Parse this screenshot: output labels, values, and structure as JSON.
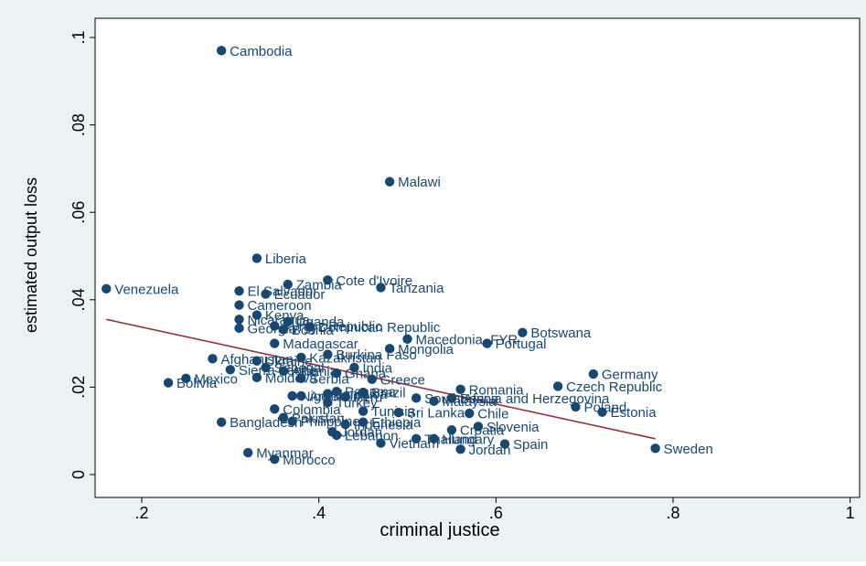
{
  "colors": {
    "outer_background": "#eaf2f3",
    "plot_background": "#ffffff",
    "marker": "#1a476f",
    "fit_line": "#90353b",
    "text": "#000000"
  },
  "chart_data": {
    "type": "scatter",
    "title": "",
    "xlabel": "criminal justice",
    "ylabel": "estimated output loss",
    "xlim": [
      0.15,
      1.02
    ],
    "ylim": [
      -0.002,
      0.102
    ],
    "x_ticks": [
      0.2,
      0.4,
      0.6,
      0.8,
      1
    ],
    "x_tick_labels": [
      ".2",
      ".4",
      ".6",
      ".8",
      "1"
    ],
    "y_ticks": [
      0,
      0.02,
      0.04,
      0.06,
      0.08,
      0.1
    ],
    "y_tick_labels": [
      "0",
      ".02",
      ".04",
      ".06",
      ".08",
      ".1"
    ],
    "grid": false,
    "legend": "none",
    "fit_line": {
      "x": [
        0.16,
        0.78
      ],
      "y": [
        0.0355,
        0.0082
      ]
    },
    "points": [
      {
        "label": "Cambodia",
        "x": 0.29,
        "y": 0.097
      },
      {
        "label": "Malawi",
        "x": 0.48,
        "y": 0.067
      },
      {
        "label": "Liberia",
        "x": 0.33,
        "y": 0.0495
      },
      {
        "label": "Cote d'Ivoire",
        "x": 0.41,
        "y": 0.0445
      },
      {
        "label": "Zambia",
        "x": 0.365,
        "y": 0.0435
      },
      {
        "label": "Tanzania",
        "x": 0.47,
        "y": 0.0428
      },
      {
        "label": "Venezuela",
        "x": 0.16,
        "y": 0.0425
      },
      {
        "label": "El Salvador",
        "x": 0.31,
        "y": 0.042
      },
      {
        "label": "Ecuador",
        "x": 0.34,
        "y": 0.0413
      },
      {
        "label": "Cameroon",
        "x": 0.31,
        "y": 0.0388
      },
      {
        "label": "Kenya",
        "x": 0.33,
        "y": 0.0365
      },
      {
        "label": "Nicaragua",
        "x": 0.31,
        "y": 0.0355
      },
      {
        "label": "Uganda",
        "x": 0.365,
        "y": 0.035
      },
      {
        "label": "Kyrgyz Republic",
        "x": 0.35,
        "y": 0.034
      },
      {
        "label": "Dominican Republic",
        "x": 0.39,
        "y": 0.0338
      },
      {
        "label": "Georgia",
        "x": 0.31,
        "y": 0.0335
      },
      {
        "label": "Bosnia",
        "x": 0.36,
        "y": 0.0332
      },
      {
        "label": "Macedonia, FYR",
        "x": 0.5,
        "y": 0.031
      },
      {
        "label": "Botswana",
        "x": 0.63,
        "y": 0.0325
      },
      {
        "label": "Madagascar",
        "x": 0.35,
        "y": 0.03
      },
      {
        "label": "Portugal",
        "x": 0.59,
        "y": 0.03
      },
      {
        "label": "Mongolia",
        "x": 0.48,
        "y": 0.0288
      },
      {
        "label": "Burkina Faso",
        "x": 0.41,
        "y": 0.0275
      },
      {
        "label": "Kazakhstan",
        "x": 0.38,
        "y": 0.0268
      },
      {
        "label": "Afghanistan",
        "x": 0.28,
        "y": 0.0265
      },
      {
        "label": "Ukraine",
        "x": 0.33,
        "y": 0.026
      },
      {
        "label": "Senegal",
        "x": 0.34,
        "y": 0.0245
      },
      {
        "label": "India",
        "x": 0.44,
        "y": 0.0245
      },
      {
        "label": "Sierra Leone",
        "x": 0.3,
        "y": 0.024
      },
      {
        "label": "Albania",
        "x": 0.36,
        "y": 0.0237
      },
      {
        "label": "Ghana",
        "x": 0.42,
        "y": 0.0232
      },
      {
        "label": "Germany",
        "x": 0.71,
        "y": 0.023
      },
      {
        "label": "Moldova",
        "x": 0.33,
        "y": 0.0222
      },
      {
        "label": "Mexico",
        "x": 0.25,
        "y": 0.022
      },
      {
        "label": "Serbia",
        "x": 0.38,
        "y": 0.022
      },
      {
        "label": "Greece",
        "x": 0.46,
        "y": 0.0218
      },
      {
        "label": "Bolivia",
        "x": 0.23,
        "y": 0.021
      },
      {
        "label": "Czech Republic",
        "x": 0.67,
        "y": 0.0202
      },
      {
        "label": "Romania",
        "x": 0.56,
        "y": 0.0195
      },
      {
        "label": "Panama",
        "x": 0.42,
        "y": 0.019
      },
      {
        "label": "Brazil",
        "x": 0.45,
        "y": 0.0188
      },
      {
        "label": "Jamaica",
        "x": 0.41,
        "y": 0.0185
      },
      {
        "label": "Nigeria",
        "x": 0.37,
        "y": 0.018
      },
      {
        "label": "Argentina",
        "x": 0.38,
        "y": 0.018
      },
      {
        "label": "Peru",
        "x": 0.43,
        "y": 0.0178
      },
      {
        "label": "South Africa",
        "x": 0.51,
        "y": 0.0175
      },
      {
        "label": "Bosnia and Herzegovina",
        "x": 0.55,
        "y": 0.0175
      },
      {
        "label": "Malaysia",
        "x": 0.53,
        "y": 0.0168
      },
      {
        "label": "Turkey",
        "x": 0.41,
        "y": 0.0165
      },
      {
        "label": "Poland",
        "x": 0.69,
        "y": 0.0155
      },
      {
        "label": "Colombia",
        "x": 0.35,
        "y": 0.015
      },
      {
        "label": "Tunisia",
        "x": 0.45,
        "y": 0.0145
      },
      {
        "label": "Sri Lanka",
        "x": 0.49,
        "y": 0.0142
      },
      {
        "label": "Estonia",
        "x": 0.72,
        "y": 0.0143
      },
      {
        "label": "Chile",
        "x": 0.57,
        "y": 0.014
      },
      {
        "label": "Pakistan",
        "x": 0.36,
        "y": 0.013
      },
      {
        "label": "Bangladesh",
        "x": 0.29,
        "y": 0.012
      },
      {
        "label": "Philippines",
        "x": 0.37,
        "y": 0.0122
      },
      {
        "label": "Ethiopia",
        "x": 0.45,
        "y": 0.012
      },
      {
        "label": "Indonesia",
        "x": 0.43,
        "y": 0.0115
      },
      {
        "label": "Slovenia",
        "x": 0.58,
        "y": 0.011
      },
      {
        "label": "Croatia",
        "x": 0.55,
        "y": 0.0102
      },
      {
        "label": "Jordan",
        "x": 0.415,
        "y": 0.0098
      },
      {
        "label": "Lebanon",
        "x": 0.42,
        "y": 0.009
      },
      {
        "label": "Thailand",
        "x": 0.51,
        "y": 0.0082
      },
      {
        "label": "Hungary",
        "x": 0.53,
        "y": 0.0082
      },
      {
        "label": "Vietnam",
        "x": 0.47,
        "y": 0.0072
      },
      {
        "label": "Spain",
        "x": 0.61,
        "y": 0.007
      },
      {
        "label": "Jordan",
        "x": 0.56,
        "y": 0.0058
      },
      {
        "label": "Sweden",
        "x": 0.78,
        "y": 0.006
      },
      {
        "label": "Myanmar",
        "x": 0.32,
        "y": 0.005
      },
      {
        "label": "Morocco",
        "x": 0.35,
        "y": 0.0035
      }
    ]
  }
}
